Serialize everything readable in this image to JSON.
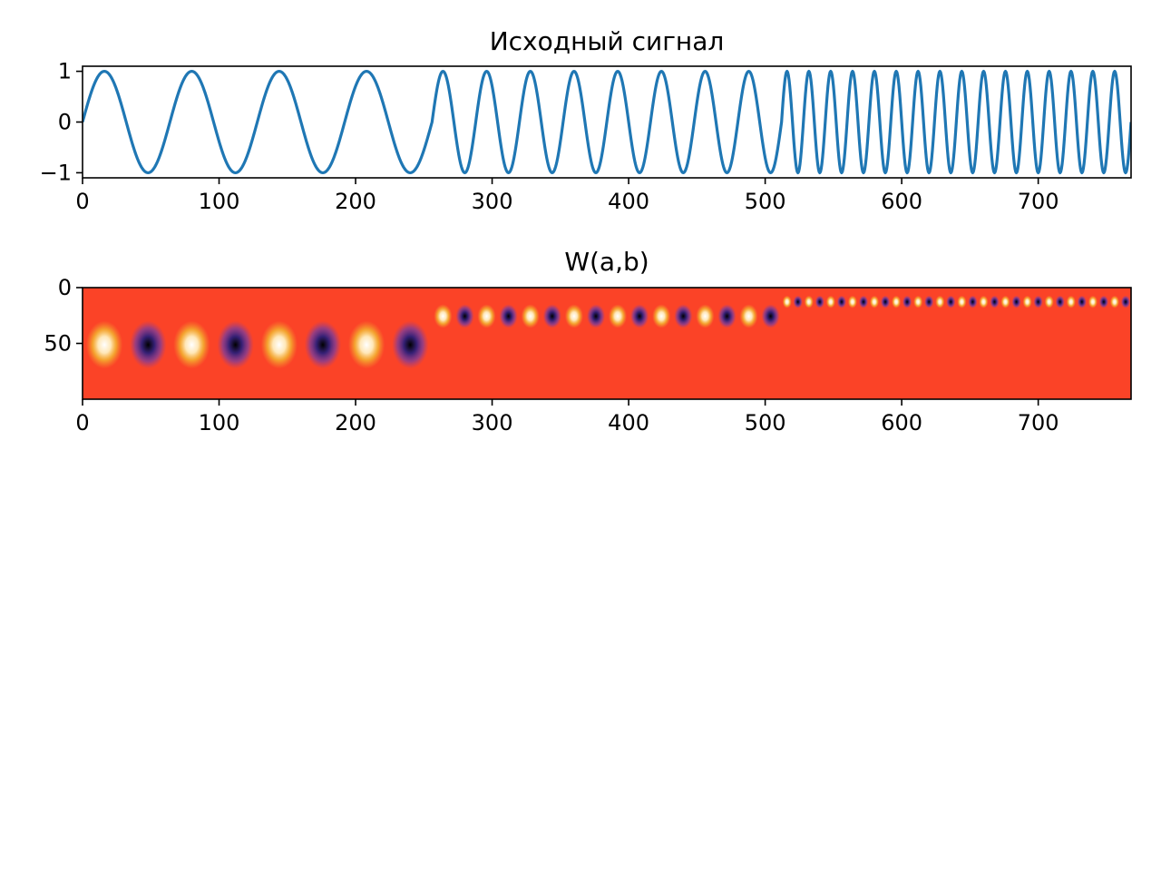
{
  "chart_data": [
    {
      "type": "line",
      "title": "Исходный сигнал",
      "xlabel": "",
      "ylabel": "",
      "xlim": [
        0,
        768
      ],
      "ylim": [
        -1.1,
        1.1
      ],
      "x_ticks": [
        0,
        100,
        200,
        300,
        400,
        500,
        600,
        700
      ],
      "x_tick_labels": [
        "0",
        "100",
        "200",
        "300",
        "400",
        "500",
        "600",
        "700"
      ],
      "y_ticks": [
        1,
        0,
        -1
      ],
      "y_tick_labels": [
        "1",
        "0",
        "−1"
      ],
      "grid": false,
      "color": "#1f77b4",
      "segments": [
        {
          "x_start": 0,
          "x_end": 256,
          "period": 64,
          "amplitude": 1
        },
        {
          "x_start": 256,
          "x_end": 512,
          "period": 32,
          "amplitude": 1
        },
        {
          "x_start": 512,
          "x_end": 768,
          "period": 16,
          "amplitude": 1
        }
      ]
    },
    {
      "type": "heatmap",
      "title": "W(a,b)",
      "xlabel": "",
      "ylabel": "",
      "xlim": [
        0,
        768
      ],
      "ylim": [
        100,
        0
      ],
      "x_ticks": [
        0,
        100,
        200,
        300,
        400,
        500,
        600,
        700
      ],
      "x_tick_labels": [
        "0",
        "100",
        "200",
        "300",
        "400",
        "500",
        "600",
        "700"
      ],
      "y_ticks": [
        0,
        50
      ],
      "y_tick_labels": [
        "0",
        "50"
      ],
      "colormap": "CMRmap",
      "background_color": "#fb4327",
      "blobs_from_segments": true
    }
  ]
}
